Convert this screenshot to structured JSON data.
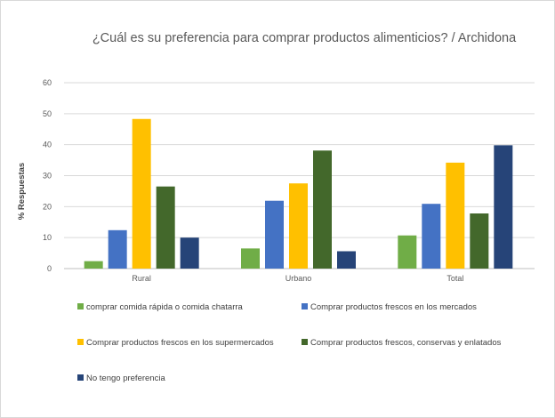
{
  "chart_data": {
    "type": "bar",
    "title": "¿Cuál es su preferencia para comprar productos alimenticios? / Archidona",
    "xlabel": "",
    "ylabel": "% Respuestas",
    "ylim": [
      0,
      60
    ],
    "yticks": [
      0,
      10,
      20,
      30,
      40,
      50,
      60
    ],
    "grid": true,
    "legend_position": "bottom",
    "categories": [
      "Rural",
      "Urbano",
      "Total"
    ],
    "series": [
      {
        "name": "comprar comida rápida o comida chatarra",
        "color": "#70ad47",
        "values": [
          2.4,
          6.5,
          10.7
        ]
      },
      {
        "name": "Comprar productos frescos en los mercados",
        "color": "#4472c4",
        "values": [
          12.4,
          21.9,
          20.9
        ]
      },
      {
        "name": "Comprar productos frescos en los supermercados",
        "color": "#ffc000",
        "values": [
          48.3,
          27.5,
          34.2
        ]
      },
      {
        "name": "Comprar productos frescos, conservas y enlatados",
        "color": "#43682b",
        "values": [
          26.5,
          38.1,
          17.8
        ]
      },
      {
        "name": "No tengo preferencia",
        "color": "#264478",
        "values": [
          10.0,
          5.6,
          39.8
        ]
      }
    ]
  }
}
